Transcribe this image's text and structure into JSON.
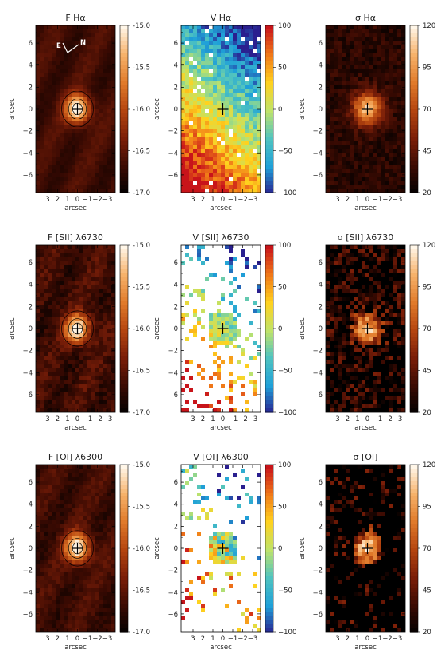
{
  "figure": {
    "rows": [
      {
        "label": "Hα",
        "panels": [
          {
            "key": "F-ha",
            "title": "F Hα",
            "kind": "flux",
            "noise": 0.05,
            "sparsity": 0.0,
            "colorbar": {
              "ticks": [
                "-15.0",
                "-15.5",
                "-16.0",
                "-16.5",
                "-17.0"
              ],
              "colormap": "hot"
            },
            "compass": {
              "n_label": "N",
              "e_label": "E"
            }
          },
          {
            "key": "V-ha",
            "title": "V Hα",
            "kind": "velocity",
            "noise": 0.25,
            "sparsity": 0.05,
            "colorbar": {
              "ticks": [
                "100",
                "50",
                "0",
                "−50",
                "−100"
              ],
              "colormap": "rainbow"
            }
          },
          {
            "key": "S-ha",
            "title": "σ Hα",
            "kind": "dispersion",
            "noise": 0.2,
            "sparsity": 0.0,
            "colorbar": {
              "ticks": [
                "120",
                "95",
                "70",
                "45",
                "20"
              ],
              "colormap": "hot"
            }
          }
        ]
      },
      {
        "label": "[SII] λ6730",
        "panels": [
          {
            "key": "F-sii",
            "title": "F [SII] λ6730",
            "kind": "flux",
            "noise": 0.15,
            "sparsity": 0.0,
            "colorbar": {
              "ticks": [
                "-15.0",
                "-15.5",
                "-16.0",
                "-16.5",
                "-17.0"
              ],
              "colormap": "hot"
            }
          },
          {
            "key": "V-sii",
            "title": "V [SII] λ6730",
            "kind": "velocity",
            "noise": 0.3,
            "sparsity": 0.8,
            "colorbar": {
              "ticks": [
                "100",
                "50",
                "0",
                "−50",
                "−100"
              ],
              "colormap": "rainbow"
            }
          },
          {
            "key": "S-sii",
            "title": "σ [SII] λ6730",
            "kind": "dispersion",
            "noise": 0.55,
            "sparsity": 0.3,
            "colorbar": {
              "ticks": [
                "120",
                "95",
                "70",
                "45",
                "20"
              ],
              "colormap": "hot"
            }
          }
        ]
      },
      {
        "label": "[OI] λ6300",
        "panels": [
          {
            "key": "F-oi",
            "title": "F [OI] λ6300",
            "kind": "flux",
            "noise": 0.1,
            "sparsity": 0.0,
            "colorbar": {
              "ticks": [
                "-15.0",
                "-15.5",
                "-16.0",
                "-16.5",
                "-17.0"
              ],
              "colormap": "hot"
            }
          },
          {
            "key": "V-oi",
            "title": "V [OI] λ6300",
            "kind": "velocity",
            "noise": 0.6,
            "sparsity": 0.88,
            "colorbar": {
              "ticks": [
                "100",
                "50",
                "0",
                "−50",
                "−100"
              ],
              "colormap": "rainbow"
            }
          },
          {
            "key": "S-oi",
            "title": "σ [OI]",
            "kind": "dispersion",
            "noise": 0.6,
            "sparsity": 0.75,
            "colorbar": {
              "ticks": [
                "120",
                "95",
                "70",
                "45",
                "20"
              ],
              "colormap": "hot"
            }
          }
        ]
      }
    ],
    "axes": {
      "x_label": "arcsec",
      "y_label": "arcsec",
      "x_ticks": [
        "3",
        "2",
        "1",
        "0",
        "−1",
        "−2",
        "−3"
      ],
      "y_ticks": [
        "6",
        "4",
        "2",
        "0",
        "−2",
        "−4",
        "−6"
      ]
    },
    "colors": {
      "flux_cmap": [
        "#000000",
        "#3a0a02",
        "#7a1e08",
        "#b4440f",
        "#e07a2a",
        "#f6b26a",
        "#fff6e8"
      ],
      "velocity_cmap": [
        "#2a1f8f",
        "#1fa0d8",
        "#4fc3c0",
        "#bfe36a",
        "#ffd21e",
        "#f07818",
        "#c8141a"
      ],
      "marker": "#000000",
      "compass": "#ffffff"
    }
  }
}
